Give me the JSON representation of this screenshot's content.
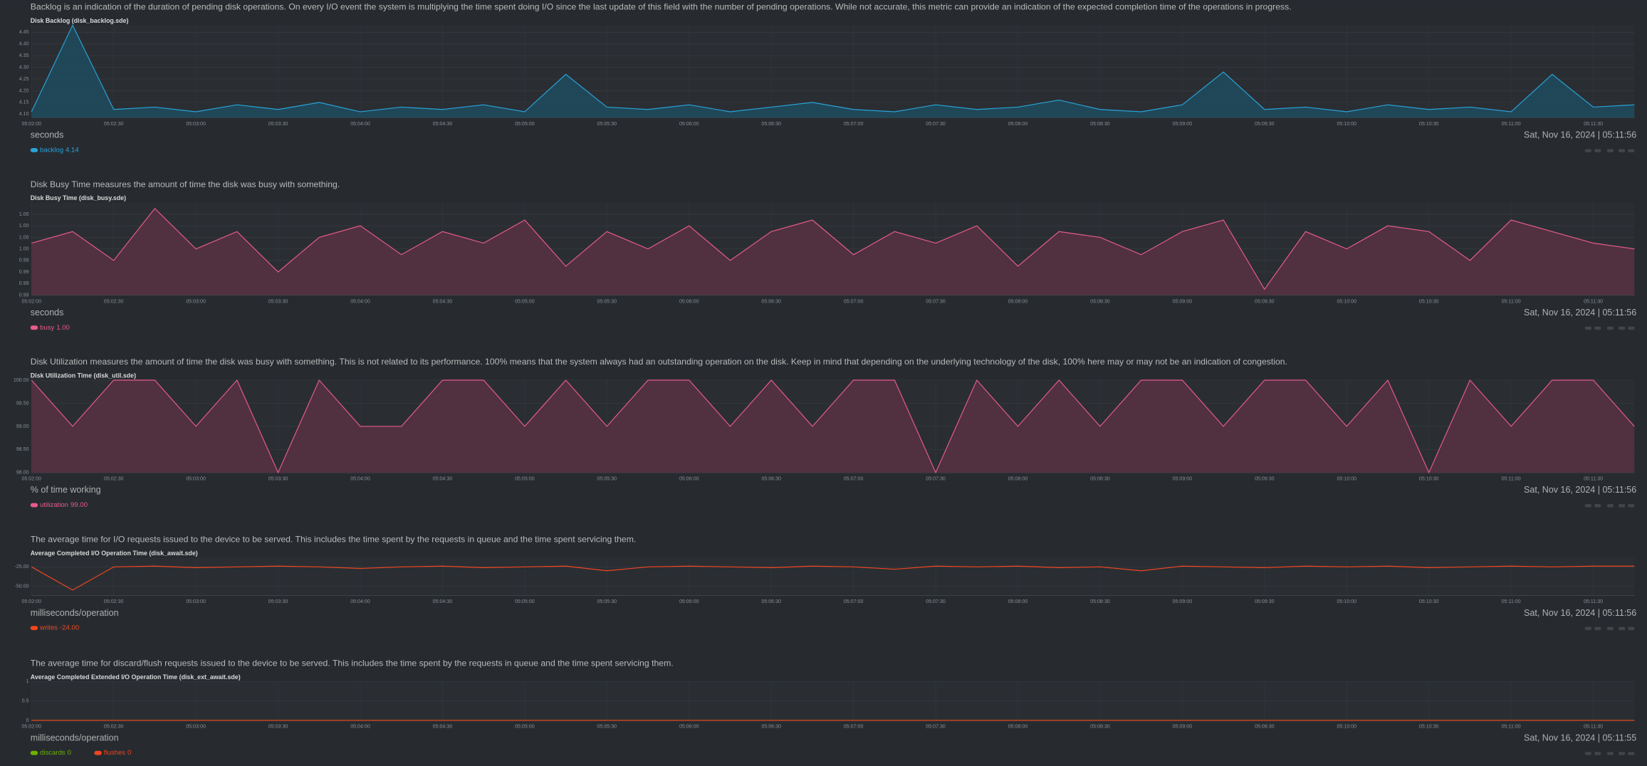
{
  "chart_data": [
    {
      "type": "area",
      "description": "Backlog is an indication of the duration of pending disk operations. On every I/O event the system is multiplying the time spent doing I/O since the last update of this field with the number of pending operations. While not accurate, this metric can provide an indication of the expected completion time of the operations in progress.",
      "title": "Disk Backlog (disk_backlog.sde)",
      "units": "seconds",
      "timestamp": "Sat, Nov 16, 2024 | 05:11:56",
      "categories": [
        "05:02:00",
        null,
        "05:02:30",
        null,
        "05:03:00",
        null,
        "05:03:30",
        null,
        "05:04:00",
        null,
        "05:04:30",
        null,
        "05:05:00",
        null,
        "05:05:30",
        null,
        "05:06:00",
        null,
        "05:06:30",
        null,
        "05:07:00",
        null,
        "05:07:30",
        null,
        "05:08:00",
        null,
        "05:08:30",
        null,
        "05:09:00",
        null,
        "05:09:30",
        null,
        "05:10:00",
        null,
        "05:10:30",
        null,
        "05:11:00",
        null,
        "05:11:30",
        null
      ],
      "ylim": [
        4.085,
        4.48
      ],
      "yticks": [
        {
          "value": 4.1,
          "label": "4.10"
        },
        {
          "value": 4.15,
          "label": "4.15"
        },
        {
          "value": 4.2,
          "label": "4.20"
        },
        {
          "value": 4.25,
          "label": "4.25"
        },
        {
          "value": 4.3,
          "label": "4.30"
        },
        {
          "value": 4.35,
          "label": "4.35"
        },
        {
          "value": 4.4,
          "label": "4.40"
        },
        {
          "value": 4.45,
          "label": "4.45"
        }
      ],
      "grid": true,
      "series": [
        {
          "name": "backlog",
          "color": "#29a3d8",
          "fill": "#1f4a5c",
          "legend_value": {
            "value": 4.14,
            "label": "4.14"
          },
          "values": [
            4.11,
            4.48,
            4.12,
            4.13,
            4.11,
            4.14,
            4.12,
            4.15,
            4.11,
            4.13,
            4.12,
            4.14,
            4.11,
            4.27,
            4.13,
            4.12,
            4.14,
            4.11,
            4.13,
            4.15,
            4.12,
            4.11,
            4.14,
            4.12,
            4.13,
            4.16,
            4.12,
            4.11,
            4.14,
            4.28,
            4.12,
            4.13,
            4.11,
            4.14,
            4.12,
            4.13,
            4.11,
            4.27,
            4.13,
            4.14
          ]
        }
      ]
    },
    {
      "type": "area",
      "description": "Disk Busy Time measures the amount of time the disk was busy with something.",
      "title": "Disk Busy Time (disk_busy.sde)",
      "units": "seconds",
      "timestamp": "Sat, Nov 16, 2024 | 05:11:56",
      "categories": [
        "05:02:00",
        null,
        "05:02:30",
        null,
        "05:03:00",
        null,
        "05:03:30",
        null,
        "05:04:00",
        null,
        "05:04:30",
        null,
        "05:05:00",
        null,
        "05:05:30",
        null,
        "05:06:00",
        null,
        "05:06:30",
        null,
        "05:07:00",
        null,
        "05:07:30",
        null,
        "05:08:00",
        null,
        "05:08:30",
        null,
        "05:09:00",
        null,
        "05:09:30",
        null,
        "05:10:00",
        null,
        "05:10:30",
        null,
        "05:11:00",
        null,
        "05:11:30",
        null
      ],
      "ylim": [
        0.988,
        1.004
      ],
      "yticks": [
        {
          "value": 0.988,
          "label": "0.99"
        },
        {
          "value": 0.99,
          "label": "0.99"
        },
        {
          "value": 0.992,
          "label": "0.99"
        },
        {
          "value": 0.994,
          "label": "0.99"
        },
        {
          "value": 0.996,
          "label": "1.00"
        },
        {
          "value": 0.998,
          "label": "1.00"
        },
        {
          "value": 1.0,
          "label": "1.00"
        },
        {
          "value": 1.002,
          "label": "1.00"
        }
      ],
      "grid": true,
      "series": [
        {
          "name": "busy",
          "color": "#e85b8a",
          "fill": "#553140",
          "legend_value": {
            "value": 1.0,
            "label": "1.00"
          },
          "values": [
            0.997,
            0.999,
            0.994,
            1.003,
            0.996,
            0.999,
            0.992,
            0.998,
            1.0,
            0.995,
            0.999,
            0.997,
            1.001,
            0.993,
            0.999,
            0.996,
            1.0,
            0.994,
            0.999,
            1.001,
            0.995,
            0.999,
            0.997,
            1.0,
            0.993,
            0.999,
            0.998,
            0.995,
            0.999,
            1.001,
            0.989,
            0.999,
            0.996,
            1.0,
            0.999,
            0.994,
            1.001,
            0.999,
            0.997,
            0.996
          ]
        }
      ]
    },
    {
      "type": "area",
      "description": "Disk Utilization measures the amount of time the disk was busy with something. This is not related to its performance. 100% means that the system always had an outstanding operation on the disk. Keep in mind that depending on the underlying technology of the disk, 100% here may or may not be an indication of congestion.",
      "title": "Disk Utilization Time (disk_util.sde)",
      "units": "% of time working",
      "timestamp": "Sat, Nov 16, 2024 | 05:11:56",
      "categories": [
        "05:02:00",
        null,
        "05:02:30",
        null,
        "05:03:00",
        null,
        "05:03:30",
        null,
        "05:04:00",
        null,
        "05:04:30",
        null,
        "05:05:00",
        null,
        "05:05:30",
        null,
        "05:06:00",
        null,
        "05:06:30",
        null,
        "05:07:00",
        null,
        "05:07:30",
        null,
        "05:08:00",
        null,
        "05:08:30",
        null,
        "05:09:00",
        null,
        "05:09:30",
        null,
        "05:10:00",
        null,
        "05:10:30",
        null,
        "05:11:00",
        null,
        "05:11:30",
        null
      ],
      "ylim": [
        98,
        100
      ],
      "yticks": [
        {
          "value": 98,
          "label": "98.00"
        },
        {
          "value": 98.5,
          "label": "98.50"
        },
        {
          "value": 99,
          "label": "99.00"
        },
        {
          "value": 99.5,
          "label": "99.50"
        },
        {
          "value": 100,
          "label": "100.00"
        }
      ],
      "grid": true,
      "series": [
        {
          "name": "utilization",
          "color": "#e85b8a",
          "fill": "#553140",
          "legend_value": {
            "value": 99,
            "label": "99.00"
          },
          "values": [
            100,
            99,
            100,
            100,
            99,
            100,
            98,
            100,
            99,
            99,
            100,
            100,
            99,
            100,
            99,
            100,
            100,
            99,
            100,
            99,
            100,
            100,
            98,
            100,
            99,
            100,
            99,
            100,
            100,
            99,
            100,
            100,
            99,
            100,
            98,
            100,
            99,
            100,
            100,
            99
          ]
        }
      ]
    },
    {
      "type": "line",
      "description": "The average time for I/O requests issued to the device to be served. This includes the time spent by the requests in queue and the time spent servicing them.",
      "title": "Average Completed I/O Operation Time (disk_await.sde)",
      "units": "milliseconds/operation",
      "timestamp": "Sat, Nov 16, 2024 | 05:11:56",
      "categories": [
        "05:02:00",
        null,
        "05:02:30",
        null,
        "05:03:00",
        null,
        "05:03:30",
        null,
        "05:04:00",
        null,
        "05:04:30",
        null,
        "05:05:00",
        null,
        "05:05:30",
        null,
        "05:06:00",
        null,
        "05:06:30",
        null,
        "05:07:00",
        null,
        "05:07:30",
        null,
        "05:08:00",
        null,
        "05:08:30",
        null,
        "05:09:00",
        null,
        "05:09:30",
        null,
        "05:10:00",
        null,
        "05:10:30",
        null,
        "05:11:00",
        null,
        "05:11:30",
        null
      ],
      "ylim": [
        -62,
        -13
      ],
      "yticks": [
        {
          "value": -50,
          "label": "-50.00"
        },
        {
          "value": -25,
          "label": "-25.00"
        }
      ],
      "grid": true,
      "series": [
        {
          "name": "writes",
          "color": "#f1451f",
          "legend_value": {
            "value": -24,
            "label": "-24.00"
          },
          "values": [
            -25,
            -55,
            -25,
            -24,
            -26,
            -25,
            -24,
            -25,
            -27,
            -25,
            -24,
            -26,
            -25,
            -24,
            -30,
            -25,
            -24,
            -25,
            -26,
            -24,
            -25,
            -28,
            -24,
            -25,
            -24,
            -26,
            -25,
            -30,
            -24,
            -25,
            -26,
            -24,
            -25,
            -24,
            -26,
            -25,
            -24,
            -25,
            -24,
            -24
          ]
        }
      ]
    },
    {
      "type": "line",
      "description": "The average time for discard/flush requests issued to the device to be served. This includes the time spent by the requests in queue and the time spent servicing them.",
      "title": "Average Completed Extended I/O Operation Time (disk_ext_await.sde)",
      "units": "milliseconds/operation",
      "timestamp": "Sat, Nov 16, 2024 | 05:11:55",
      "categories": [
        "05:02:00",
        null,
        "05:02:30",
        null,
        "05:03:00",
        null,
        "05:03:30",
        null,
        "05:04:00",
        null,
        "05:04:30",
        null,
        "05:05:00",
        null,
        "05:05:30",
        null,
        "05:06:00",
        null,
        "05:06:30",
        null,
        "05:07:00",
        null,
        "05:07:30",
        null,
        "05:08:00",
        null,
        "05:08:30",
        null,
        "05:09:00",
        null,
        "05:09:30",
        null,
        "05:10:00",
        null,
        "05:10:30",
        null,
        "05:11:00",
        null,
        "05:11:30",
        null
      ],
      "ylim": [
        0,
        1
      ],
      "yticks": [
        0,
        0.5,
        1
      ],
      "grid": true,
      "series": [
        {
          "name": "discards",
          "color": "#6cb200",
          "legend_value": 0,
          "values": [
            0,
            0,
            0,
            0,
            0,
            0,
            0,
            0,
            0,
            0,
            0,
            0,
            0,
            0,
            0,
            0,
            0,
            0,
            0,
            0,
            0,
            0,
            0,
            0,
            0,
            0,
            0,
            0,
            0,
            0,
            0,
            0,
            0,
            0,
            0,
            0,
            0,
            0,
            0,
            0
          ]
        },
        {
          "name": "flushes",
          "color": "#f1451f",
          "legend_value": 0,
          "values": [
            0,
            0,
            0,
            0,
            0,
            0,
            0,
            0,
            0,
            0,
            0,
            0,
            0,
            0,
            0,
            0,
            0,
            0,
            0,
            0,
            0,
            0,
            0,
            0,
            0,
            0,
            0,
            0,
            0,
            0,
            0,
            0,
            0,
            0,
            0,
            0,
            0,
            0,
            0,
            0
          ]
        }
      ]
    }
  ]
}
